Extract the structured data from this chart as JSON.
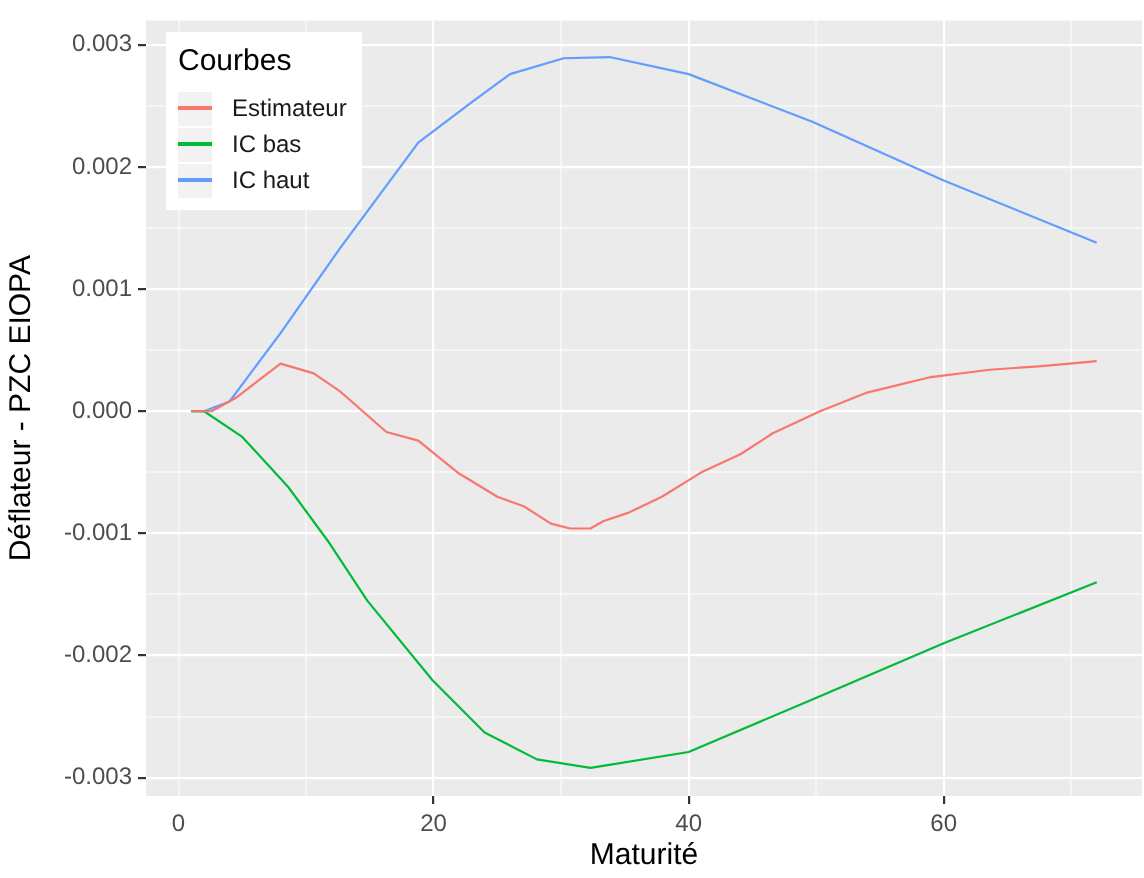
{
  "chart_data": {
    "type": "line",
    "xlabel": "Maturité",
    "ylabel": "Déflateur - PZC EIOPA",
    "legend_title": "Courbes",
    "legend": "top left",
    "grid": true,
    "xlim": [
      -2.55,
      75.55
    ],
    "xticks": [
      0,
      {
        "value": 10,
        "label": null
      },
      20,
      {
        "value": 30,
        "label": null
      },
      40,
      {
        "value": 50,
        "label": null
      },
      60,
      {
        "value": 70,
        "label": null
      }
    ],
    "ylim": [
      -0.00315,
      0.0032
    ],
    "yticks": [
      -0.003,
      {
        "value": -0.0025,
        "label": null
      },
      -0.002,
      {
        "value": -0.0015,
        "label": null
      },
      -0.001,
      {
        "value": -0.0005,
        "label": null
      },
      {
        "value": 0,
        "label": "0.000"
      },
      {
        "value": 0.0005,
        "label": null
      },
      0.001,
      {
        "value": 0.0015,
        "label": null
      },
      0.002,
      {
        "value": 0.0025,
        "label": null
      },
      0.003
    ],
    "series": [
      {
        "name": "Estimateur",
        "color": "#f8766d",
        "x": [
          1,
          2,
          2.6,
          4.5,
          8,
          10.6,
          12.7,
          16.3,
          18.8,
          22,
          25,
          27.1,
          29.2,
          30.7,
          32.3,
          33.3,
          35.3,
          37.9,
          41,
          44.1,
          46.6,
          50.3,
          53.9,
          59,
          63.6,
          67.7,
          72
        ],
        "values": [
          0,
          0,
          0,
          0.00011,
          0.00039,
          0.00031,
          0.00016,
          -0.00017,
          -0.00024,
          -0.00051,
          -0.0007,
          -0.00078,
          -0.00092,
          -0.00096,
          -0.00096,
          -0.0009,
          -0.00083,
          -0.0007,
          -0.0005,
          -0.00035,
          -0.00018,
          0,
          0.00015,
          0.00028,
          0.00034,
          0.00037,
          0.00041
        ]
      },
      {
        "name": "IC bas",
        "color": "#00ba38",
        "x": [
          1,
          2,
          5,
          8.6,
          11.7,
          14.8,
          19.9,
          24,
          28.1,
          32.3,
          40,
          49.7,
          60,
          72
        ],
        "values": [
          0,
          0,
          -0.00021,
          -0.00062,
          -0.00106,
          -0.00155,
          -0.0022,
          -0.00263,
          -0.00285,
          -0.00292,
          -0.00279,
          -0.00236,
          -0.0019,
          -0.0014
        ]
      },
      {
        "name": "IC haut",
        "color": "#619cff",
        "x": [
          1,
          2,
          4,
          8,
          12.7,
          18.8,
          23,
          26,
          30.2,
          33.8,
          40,
          49.7,
          60,
          72
        ],
        "values": [
          0,
          0,
          8e-05,
          0.00064,
          0.00134,
          0.0022,
          0.00253,
          0.00276,
          0.00289,
          0.0029,
          0.00276,
          0.00237,
          0.00189,
          0.00138
        ]
      }
    ]
  }
}
